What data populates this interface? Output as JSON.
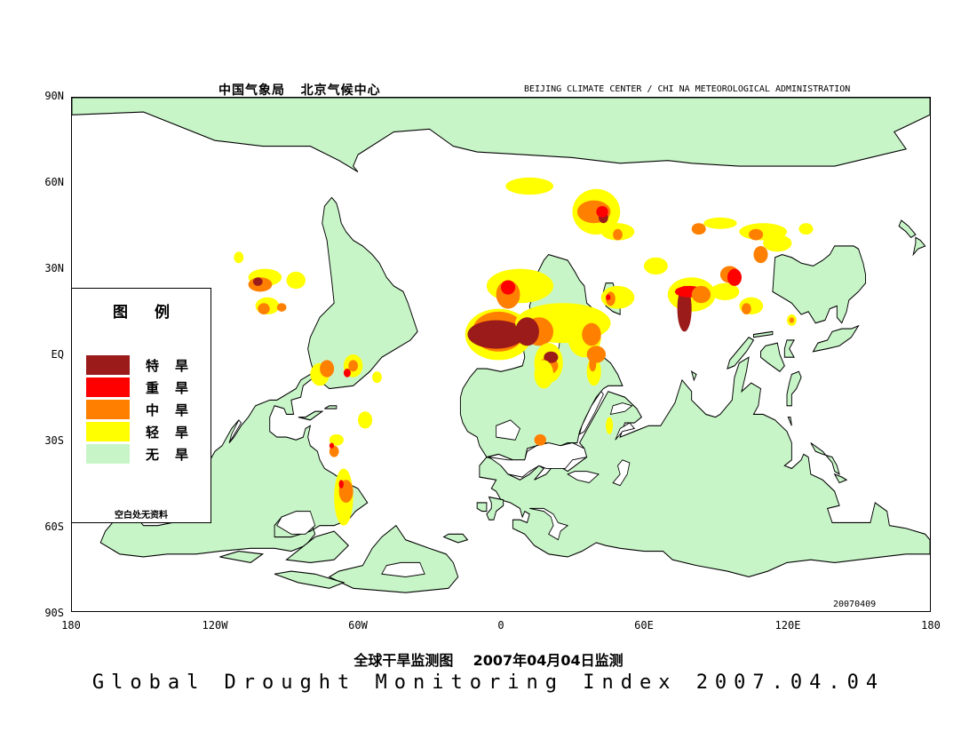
{
  "header": {
    "left_cn": "中国气象局   北京气候中心",
    "right_en": "BEIJING CLIMATE CENTER / CHI NA METEOROLOGICAL ADMINISTRATION"
  },
  "axes": {
    "lat_ticks": [
      "90N",
      "60N",
      "30N",
      "EQ",
      "30S",
      "60S",
      "90S"
    ],
    "lon_ticks": [
      "180",
      "120W",
      "60W",
      "0",
      "60E",
      "120E",
      "180"
    ]
  },
  "map": {
    "projection": "equirectangular",
    "extent": {
      "lon": [
        -180,
        180
      ],
      "lat": [
        -90,
        90
      ]
    },
    "ocean_color": "#ffffff",
    "coast_color": "#000000",
    "categories": [
      {
        "key": "extreme",
        "color": "#9b1a1a"
      },
      {
        "key": "severe",
        "color": "#ff0000"
      },
      {
        "key": "moderate",
        "color": "#ff8000"
      },
      {
        "key": "light",
        "color": "#ffff00"
      },
      {
        "key": "none",
        "color": "#c8f5c8"
      }
    ]
  },
  "legend": {
    "title": "图例",
    "items": [
      {
        "label": "特旱",
        "color": "#9b1a1a"
      },
      {
        "label": "重旱",
        "color": "#ff0000"
      },
      {
        "label": "中旱",
        "color": "#ff8000"
      },
      {
        "label": "轻旱",
        "color": "#ffff00"
      },
      {
        "label": "无旱",
        "color": "#c8f5c8"
      }
    ],
    "note": "空白处无资料"
  },
  "stamp": "20070409",
  "title": {
    "cn": "全球干旱监测图    2007年04月04日监测",
    "en": "Global Drought Monitoring Index 2007.04.04"
  }
}
